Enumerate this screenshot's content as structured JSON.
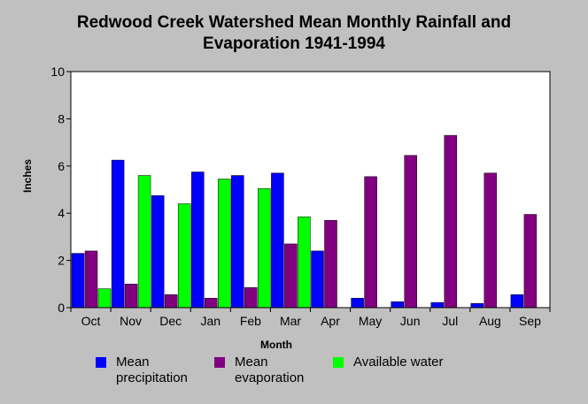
{
  "title_lines": [
    "Redwood Creek Watershed Mean Monthly Rainfall and",
    "Evaporation 1941-1994"
  ],
  "chart_data": {
    "type": "bar",
    "title": "Redwood Creek Watershed Mean Monthly Rainfall and Evaporation 1941-1994",
    "xlabel": "Month",
    "ylabel": "Inches",
    "ylim": [
      0,
      10
    ],
    "yticks": [
      0,
      2,
      4,
      6,
      8,
      10
    ],
    "grid": false,
    "legend_position": "bottom",
    "categories": [
      "Oct",
      "Nov",
      "Dec",
      "Jan",
      "Feb",
      "Mar",
      "Apr",
      "May",
      "Jun",
      "Jul",
      "Aug",
      "Sep"
    ],
    "series": [
      {
        "name": "Mean precipitation",
        "legend_lines": [
          "Mean",
          "precipitation"
        ],
        "color": "#0000ff",
        "values": [
          2.3,
          6.25,
          4.75,
          5.75,
          5.6,
          5.7,
          2.4,
          0.4,
          0.25,
          0.22,
          0.18,
          0.55
        ]
      },
      {
        "name": "Mean evaporation",
        "legend_lines": [
          "Mean",
          "evaporation"
        ],
        "color": "#800080",
        "values": [
          2.4,
          1.0,
          0.55,
          0.4,
          0.85,
          2.7,
          3.7,
          5.55,
          6.45,
          7.3,
          5.7,
          3.95
        ]
      },
      {
        "name": "Available water",
        "legend_lines": [
          "Available water"
        ],
        "color": "#00ff00",
        "values": [
          0.8,
          5.6,
          4.4,
          5.45,
          5.05,
          3.85,
          null,
          null,
          null,
          null,
          null,
          null
        ]
      }
    ]
  }
}
